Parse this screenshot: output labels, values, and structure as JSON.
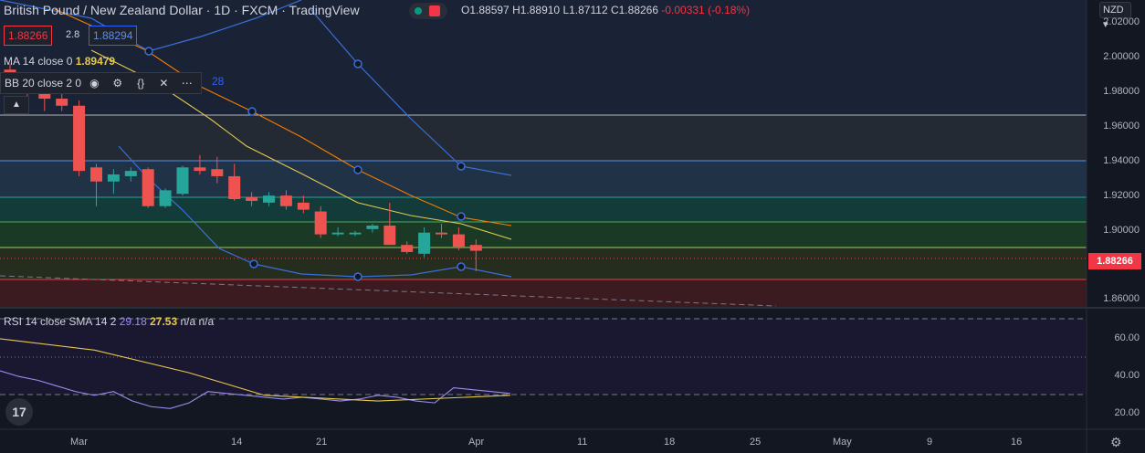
{
  "header": {
    "title": "British Pound / New Zealand Dollar · 1D · FXCM · TradingView",
    "ohlc": {
      "o": "O1.88597",
      "h": "H1.88910",
      "l": "L1.87112",
      "c": "C1.88266",
      "chg": "-0.00331 (-0.18%)"
    }
  },
  "quote": {
    "bid": "1.88266",
    "spread": "2.8",
    "ask": "1.88294"
  },
  "ma_legend": {
    "label": "MA 14 close 0",
    "value": "1.89479"
  },
  "bb_legend": {
    "label": "BB 20 close 2 0",
    "extra": "28",
    "icons": [
      "eye-icon",
      "gear-icon",
      "braces-icon",
      "close-icon",
      "more-icon"
    ]
  },
  "currency": "NZD",
  "price_axis": [
    "2.02000",
    "2.00000",
    "1.98000",
    "1.96000",
    "1.94000",
    "1.92000",
    "1.90000",
    "1.86000"
  ],
  "last_price": "1.88266",
  "rsi_legend": {
    "label": "RSI 14 close SMA 14 2",
    "v1": "29.18",
    "v2": "27.53",
    "v3": "n/a n/a"
  },
  "rsi_axis": [
    "60.00",
    "40.00",
    "20.00"
  ],
  "date_axis": [
    "Mar",
    "14",
    "21",
    "Apr",
    "11",
    "18",
    "25",
    "May",
    "9",
    "16"
  ],
  "colors": {
    "up": "#26a69a",
    "down": "#ef5350",
    "bb": "#2962ff",
    "ma": "#e6c84f",
    "orange": "#f57c00",
    "rsi": "#9c8cf0"
  },
  "chart_data": {
    "type": "candlestick",
    "price_range": [
      1.855,
      2.025
    ],
    "candles": [
      {
        "o": 1.9855,
        "h": 1.989,
        "l": 1.972,
        "c": 1.976
      },
      {
        "o": 1.976,
        "h": 1.978,
        "l": 1.97,
        "c": 1.972
      },
      {
        "o": 1.972,
        "h": 1.973,
        "l": 1.962,
        "c": 1.969
      },
      {
        "o": 1.969,
        "h": 1.972,
        "l": 1.962,
        "c": 1.965
      },
      {
        "o": 1.965,
        "h": 1.968,
        "l": 1.925,
        "c": 1.928
      },
      {
        "o": 1.93,
        "h": 1.932,
        "l": 1.908,
        "c": 1.922
      },
      {
        "o": 1.922,
        "h": 1.929,
        "l": 1.915,
        "c": 1.926
      },
      {
        "o": 1.925,
        "h": 1.93,
        "l": 1.922,
        "c": 1.928
      },
      {
        "o": 1.929,
        "h": 1.93,
        "l": 1.907,
        "c": 1.908
      },
      {
        "o": 1.908,
        "h": 1.918,
        "l": 1.907,
        "c": 1.917
      },
      {
        "o": 1.915,
        "h": 1.931,
        "l": 1.914,
        "c": 1.93
      },
      {
        "o": 1.93,
        "h": 1.937,
        "l": 1.926,
        "c": 1.928
      },
      {
        "o": 1.929,
        "h": 1.936,
        "l": 1.921,
        "c": 1.925
      },
      {
        "o": 1.925,
        "h": 1.932,
        "l": 1.911,
        "c": 1.912
      },
      {
        "o": 1.913,
        "h": 1.916,
        "l": 1.908,
        "c": 1.911
      },
      {
        "o": 1.91,
        "h": 1.916,
        "l": 1.908,
        "c": 1.914
      },
      {
        "o": 1.914,
        "h": 1.917,
        "l": 1.906,
        "c": 1.908
      },
      {
        "o": 1.91,
        "h": 1.914,
        "l": 1.904,
        "c": 1.906
      },
      {
        "o": 1.905,
        "h": 1.908,
        "l": 1.89,
        "c": 1.892
      },
      {
        "o": 1.892,
        "h": 1.896,
        "l": 1.891,
        "c": 1.893
      },
      {
        "o": 1.892,
        "h": 1.894,
        "l": 1.891,
        "c": 1.893
      },
      {
        "o": 1.895,
        "h": 1.898,
        "l": 1.893,
        "c": 1.897
      },
      {
        "o": 1.897,
        "h": 1.91,
        "l": 1.886,
        "c": 1.886
      },
      {
        "o": 1.886,
        "h": 1.888,
        "l": 1.881,
        "c": 1.882
      },
      {
        "o": 1.881,
        "h": 1.896,
        "l": 1.879,
        "c": 1.893
      },
      {
        "o": 1.893,
        "h": 1.898,
        "l": 1.89,
        "c": 1.892
      },
      {
        "o": 1.892,
        "h": 1.896,
        "l": 1.883,
        "c": 1.885
      },
      {
        "o": 1.886,
        "h": 1.8891,
        "l": 1.8711,
        "c": 1.8827
      }
    ],
    "rsi": [
      [
        0,
        41
      ],
      [
        1,
        38
      ],
      [
        2,
        36
      ],
      [
        3,
        33
      ],
      [
        4,
        30
      ],
      [
        5,
        28
      ],
      [
        6,
        30
      ],
      [
        7,
        25
      ],
      [
        8,
        22
      ],
      [
        9,
        21
      ],
      [
        10,
        24
      ],
      [
        11,
        30
      ],
      [
        12,
        29
      ],
      [
        13,
        28
      ],
      [
        14,
        27
      ],
      [
        15,
        26
      ],
      [
        16,
        27
      ],
      [
        17,
        26
      ],
      [
        18,
        25
      ],
      [
        19,
        26
      ],
      [
        20,
        28
      ],
      [
        21,
        27
      ],
      [
        22,
        25
      ],
      [
        23,
        24
      ],
      [
        24,
        32
      ],
      [
        25,
        31
      ],
      [
        26,
        30
      ],
      [
        27,
        29
      ]
    ],
    "rsi_sma": [
      [
        0,
        58
      ],
      [
        5,
        52
      ],
      [
        10,
        40
      ],
      [
        14,
        28
      ],
      [
        20,
        25
      ],
      [
        27,
        28
      ]
    ],
    "rsi_range": [
      10,
      73
    ]
  }
}
